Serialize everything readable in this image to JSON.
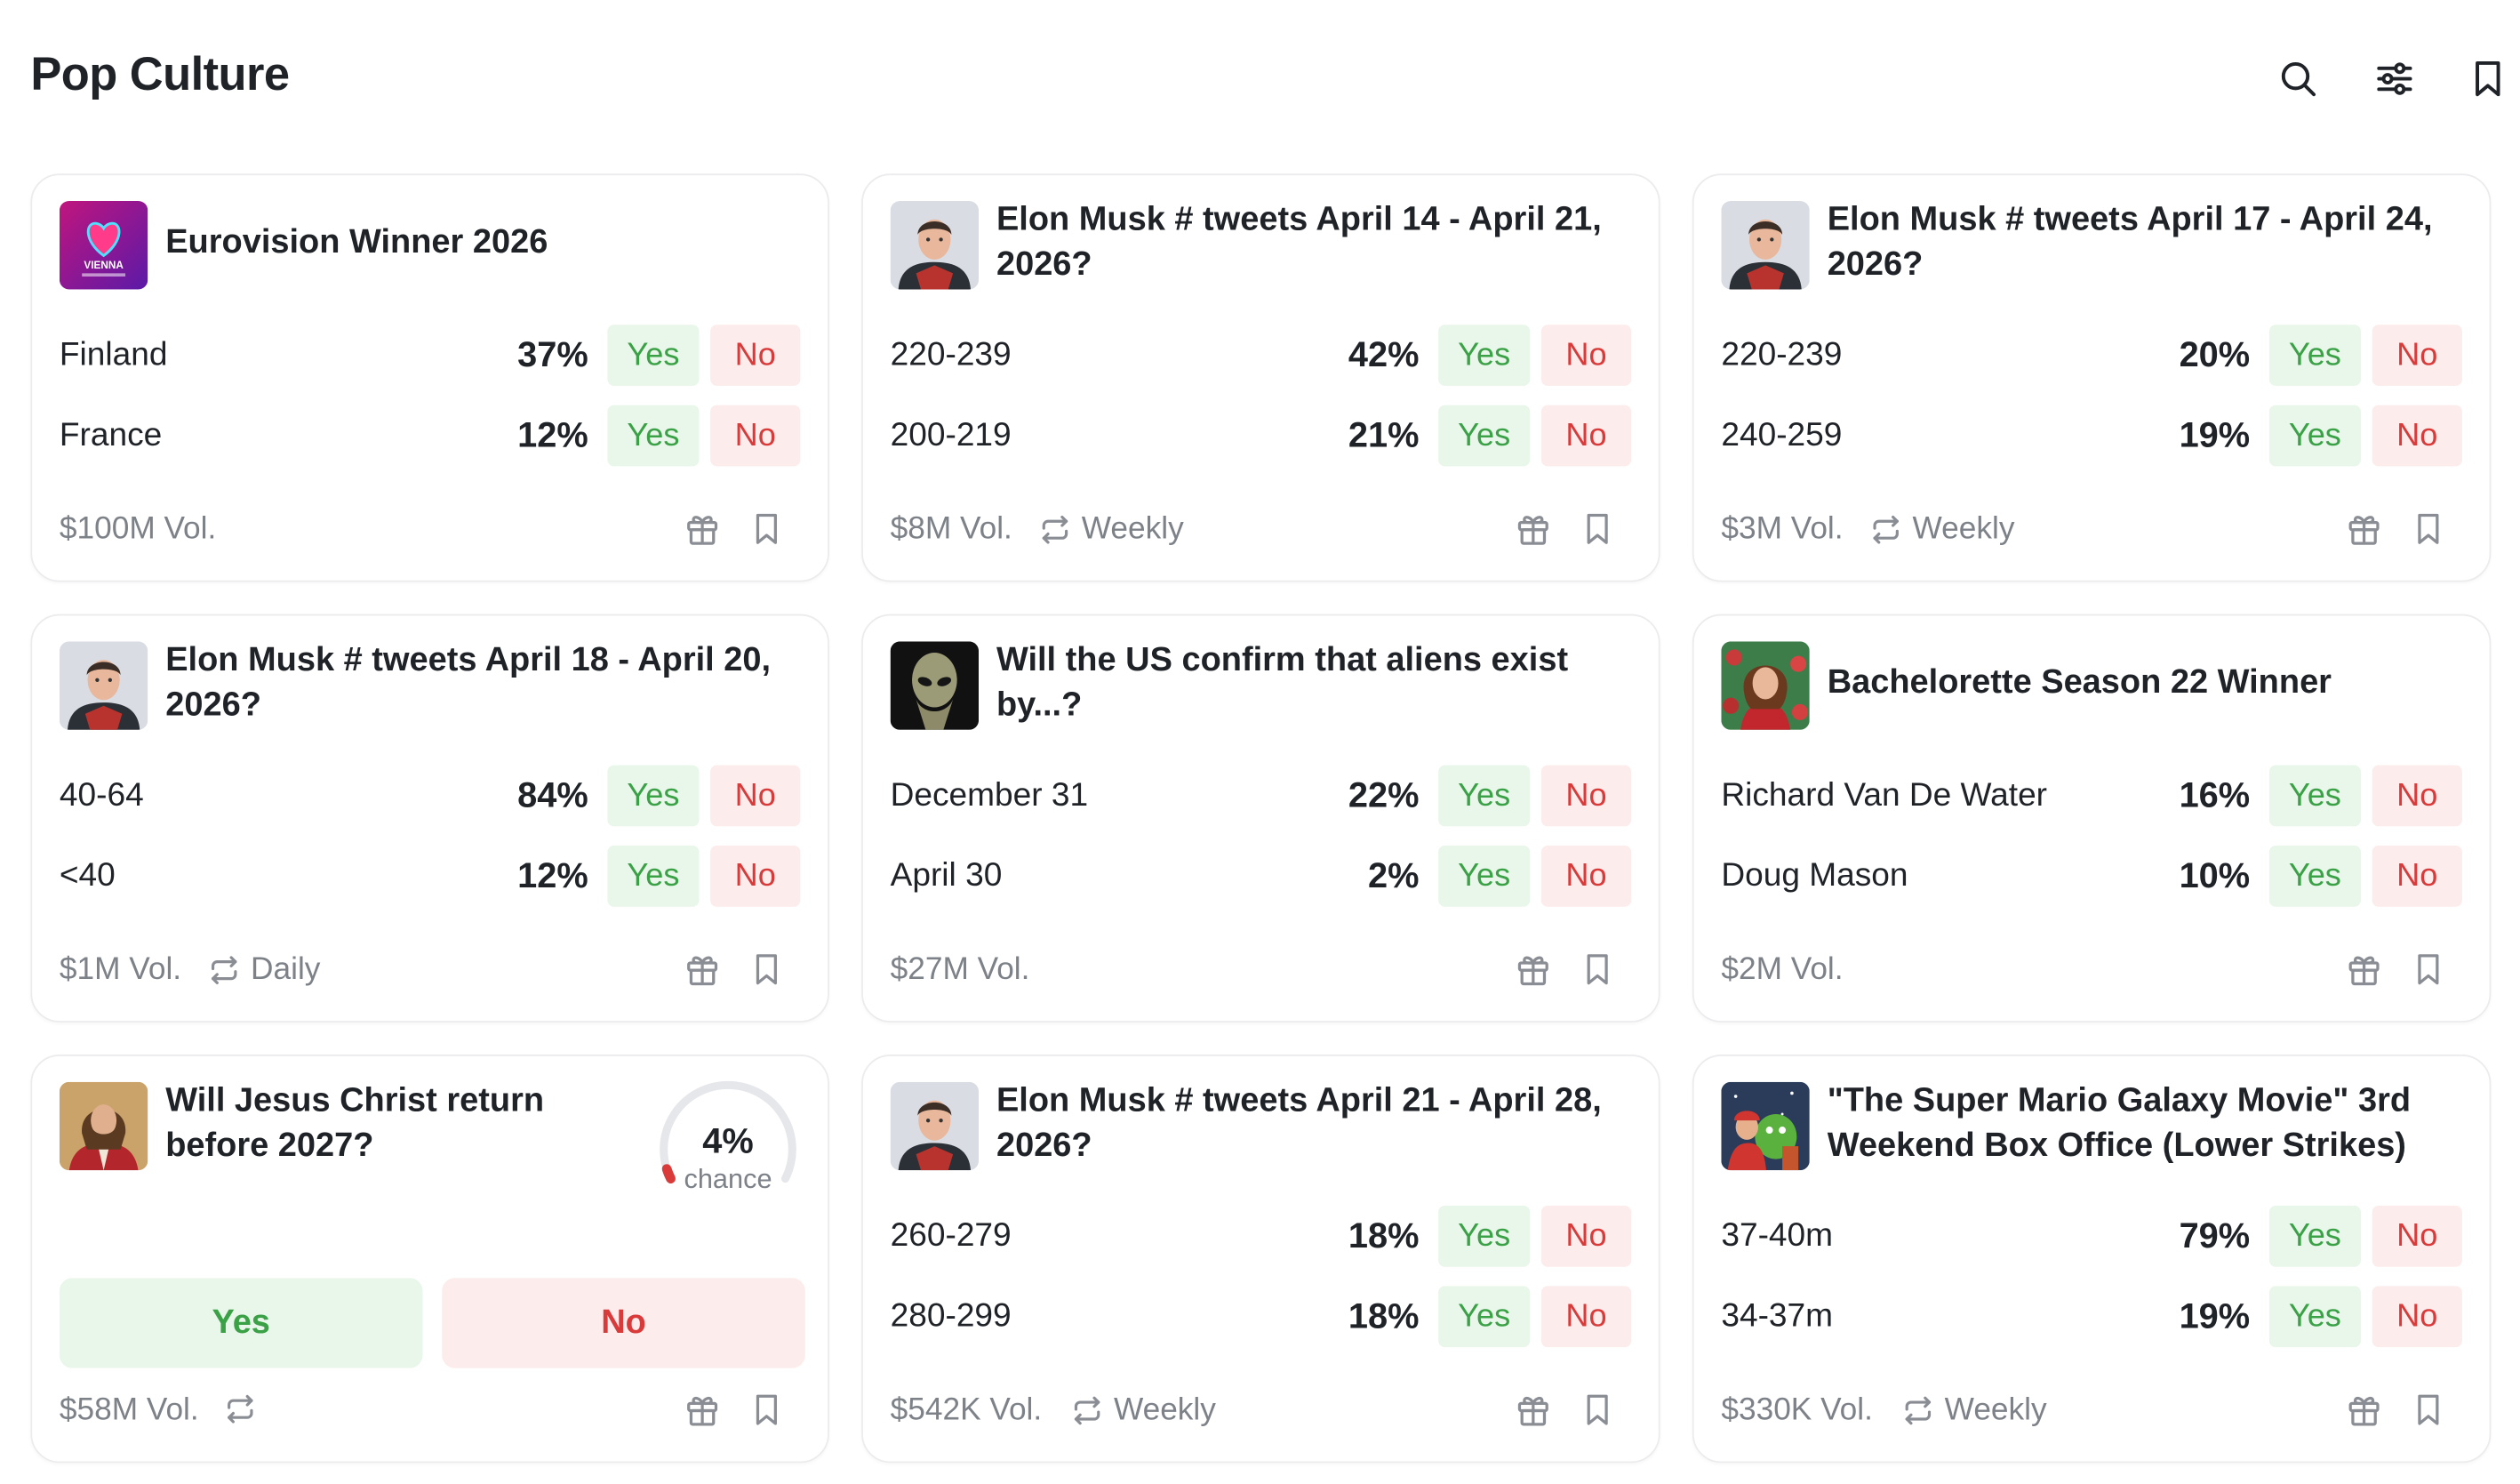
{
  "header": {
    "title": "Pop Culture",
    "icons": [
      "search-icon",
      "filter-sliders-icon",
      "bookmark-icon"
    ]
  },
  "colors": {
    "yes_text": "#3aa146",
    "yes_bg": "#e9f6ea",
    "no_text": "#d93b3b",
    "no_bg": "#fdecec",
    "muted": "#7d8188"
  },
  "cards": [
    {
      "title": "Eurovision Winner 2026",
      "thumbnail": "eurovision-heart-logo",
      "outcomes": [
        {
          "label": "Finland",
          "pct": "37%",
          "yes": "Yes",
          "no": "No"
        },
        {
          "label": "France",
          "pct": "12%",
          "yes": "Yes",
          "no": "No"
        }
      ],
      "volume": "$100M Vol.",
      "frequency": ""
    },
    {
      "title": "Elon Musk # tweets April 14 - April 21, 2026?",
      "thumbnail": "elon-musk-portrait",
      "outcomes": [
        {
          "label": "220-239",
          "pct": "42%",
          "yes": "Yes",
          "no": "No"
        },
        {
          "label": "200-219",
          "pct": "21%",
          "yes": "Yes",
          "no": "No"
        }
      ],
      "volume": "$8M Vol.",
      "frequency": "Weekly"
    },
    {
      "title": "Elon Musk # tweets April 17 - April 24, 2026?",
      "thumbnail": "elon-musk-portrait",
      "outcomes": [
        {
          "label": "220-239",
          "pct": "20%",
          "yes": "Yes",
          "no": "No"
        },
        {
          "label": "240-259",
          "pct": "19%",
          "yes": "Yes",
          "no": "No"
        }
      ],
      "volume": "$3M Vol.",
      "frequency": "Weekly"
    },
    {
      "title": "Elon Musk # tweets April 18 - April 20, 2026?",
      "thumbnail": "elon-musk-portrait",
      "outcomes": [
        {
          "label": "40-64",
          "pct": "84%",
          "yes": "Yes",
          "no": "No"
        },
        {
          "label": "<40",
          "pct": "12%",
          "yes": "Yes",
          "no": "No"
        }
      ],
      "volume": "$1M Vol.",
      "frequency": "Daily"
    },
    {
      "title": "Will the US confirm that aliens exist by...?",
      "thumbnail": "alien-portrait",
      "outcomes": [
        {
          "label": "December 31",
          "pct": "22%",
          "yes": "Yes",
          "no": "No"
        },
        {
          "label": "April 30",
          "pct": "2%",
          "yes": "Yes",
          "no": "No"
        }
      ],
      "volume": "$27M Vol.",
      "frequency": ""
    },
    {
      "title": "Bachelorette Season 22 Winner",
      "thumbnail": "bachelorette-portrait",
      "outcomes": [
        {
          "label": "Richard Van De Water",
          "pct": "16%",
          "yes": "Yes",
          "no": "No"
        },
        {
          "label": "Doug Mason",
          "pct": "10%",
          "yes": "Yes",
          "no": "No"
        }
      ],
      "volume": "$2M Vol.",
      "frequency": ""
    },
    {
      "title": "Will Jesus Christ return before 2027?",
      "thumbnail": "jesus-portrait",
      "chance": {
        "value": "4%",
        "label": "chance",
        "fraction": 0.04
      },
      "yes": "Yes",
      "no": "No",
      "volume": "$58M Vol.",
      "frequency": ""
    },
    {
      "title": "Elon Musk # tweets April 21 - April 28, 2026?",
      "thumbnail": "elon-musk-portrait",
      "outcomes": [
        {
          "label": "260-279",
          "pct": "18%",
          "yes": "Yes",
          "no": "No"
        },
        {
          "label": "280-299",
          "pct": "18%",
          "yes": "Yes",
          "no": "No"
        }
      ],
      "volume": "$542K Vol.",
      "frequency": "Weekly"
    },
    {
      "title": "\"The Super Mario Galaxy Movie\" 3rd Weekend Box Office (Lower Strikes)",
      "thumbnail": "mario-galaxy-poster",
      "outcomes": [
        {
          "label": "37-40m",
          "pct": "79%",
          "yes": "Yes",
          "no": "No"
        },
        {
          "label": "34-37m",
          "pct": "19%",
          "yes": "Yes",
          "no": "No"
        }
      ],
      "volume": "$330K Vol.",
      "frequency": "Weekly"
    }
  ]
}
